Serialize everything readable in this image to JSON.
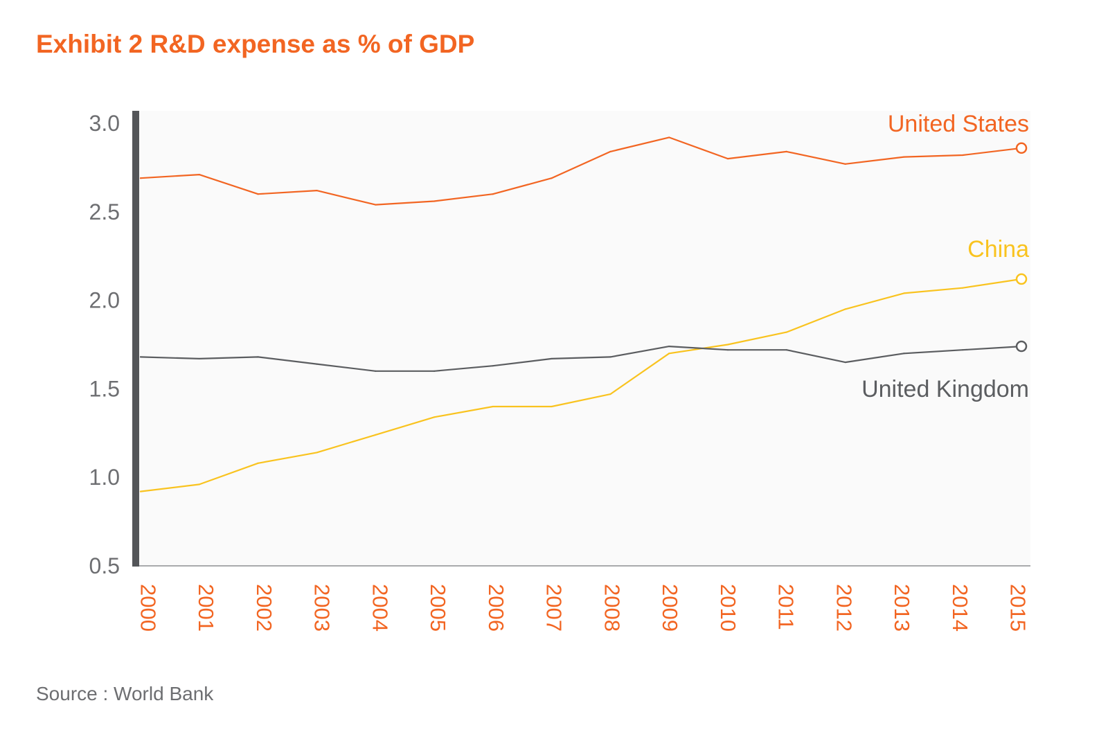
{
  "chart_data": {
    "type": "line",
    "title": "Exhibit 2 R&D expense as % of GDP",
    "xlabel": "",
    "ylabel": "",
    "x": [
      "2000",
      "2001",
      "2002",
      "2003",
      "2004",
      "2005",
      "2006",
      "2007",
      "2008",
      "2009",
      "2010",
      "2011",
      "2012",
      "2013",
      "2014",
      "2015"
    ],
    "ylim": [
      0.5,
      3.0
    ],
    "yticks": [
      "3.0",
      "2.5",
      "2.0",
      "1.5",
      "1.0",
      "0.5"
    ],
    "grid": false,
    "legend": "right",
    "series": [
      {
        "name": "United States",
        "color": "#f26522",
        "values": [
          2.69,
          2.71,
          2.6,
          2.62,
          2.54,
          2.56,
          2.6,
          2.69,
          2.84,
          2.92,
          2.8,
          2.84,
          2.77,
          2.81,
          2.82,
          2.86
        ]
      },
      {
        "name": "China",
        "color": "#f9c31f",
        "values": [
          0.92,
          0.96,
          1.08,
          1.14,
          1.24,
          1.34,
          1.4,
          1.4,
          1.47,
          1.7,
          1.75,
          1.82,
          1.95,
          2.04,
          2.07,
          2.12
        ]
      },
      {
        "name": "United Kingdom",
        "color": "#5b5d60",
        "values": [
          1.68,
          1.67,
          1.68,
          1.64,
          1.6,
          1.6,
          1.63,
          1.67,
          1.68,
          1.74,
          1.72,
          1.72,
          1.65,
          1.7,
          1.72,
          1.74
        ]
      }
    ]
  },
  "source_note": "Source : World Bank",
  "colors": {
    "title": "#f26522",
    "x_tick_labels": "#f26522",
    "y_tick_labels": "#6d6e71",
    "y_axis_bar": "#545659",
    "x_axis_line": "#8c8e91",
    "plot_background": "#fafafa",
    "source_text": "#6d6e71"
  }
}
